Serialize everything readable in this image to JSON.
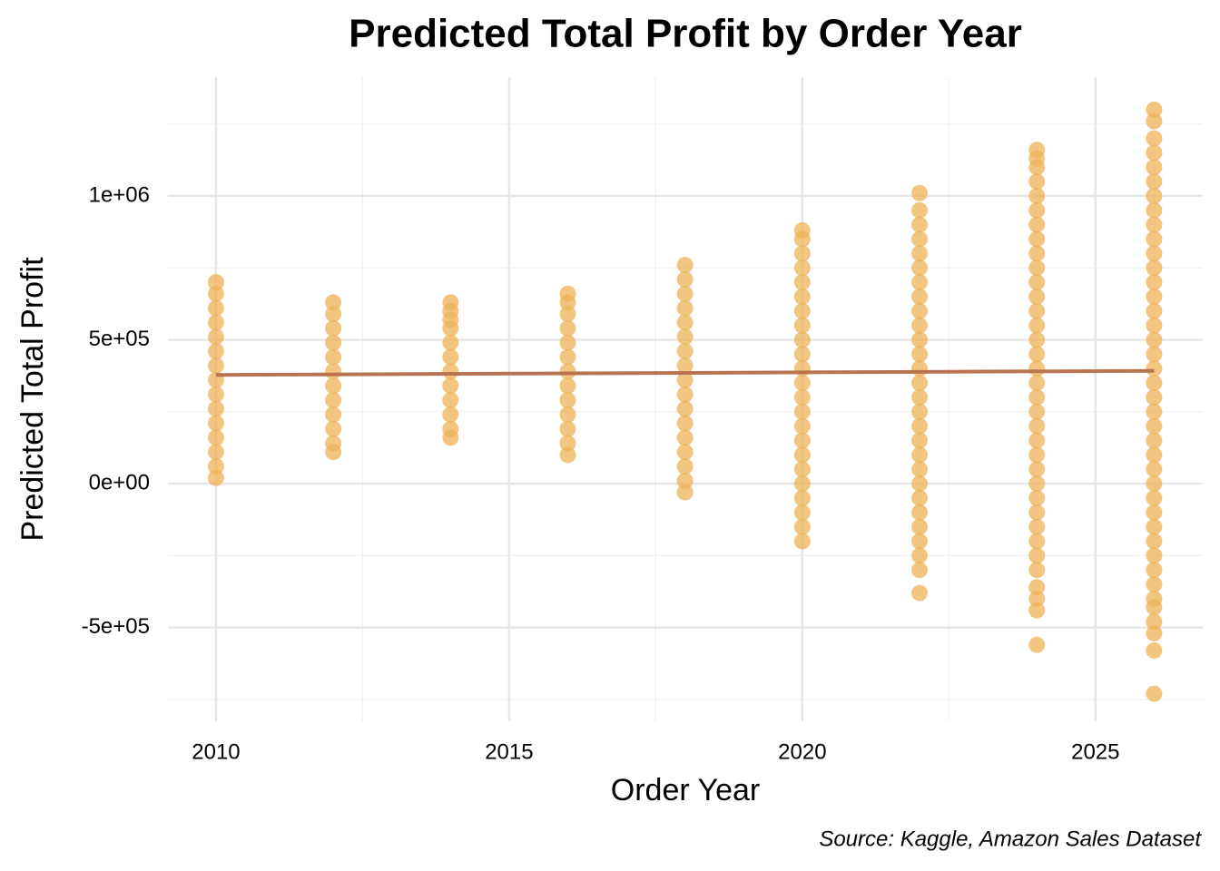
{
  "chart_data": {
    "type": "scatter",
    "title": "Predicted Total Profit by Order Year",
    "x_label": "Order Year",
    "y_label": "Predicted Total Profit",
    "caption": "Source: Kaggle, Amazon Sales Dataset",
    "color": "#eeb157",
    "xlim": [
      2009.18,
      2026.83
    ],
    "ylim": [
      -826000,
      1413000
    ],
    "xticks": [
      2010,
      2015,
      2020,
      2025
    ],
    "yticks": [
      {
        "value": -500000,
        "label": "-5e+05"
      },
      {
        "value": 0,
        "label": "0e+00"
      },
      {
        "value": 500000,
        "label": "5e+05"
      },
      {
        "value": 1000000,
        "label": "1e+06"
      }
    ],
    "xminorticks": [
      2012.5,
      2017.5,
      2022.5
    ],
    "yminorticks": [
      -750000,
      -250000,
      250000,
      750000,
      1250000
    ],
    "grid": true,
    "groups": [
      {
        "x": 2010,
        "values": [
          20000,
          60000,
          110000,
          160000,
          210000,
          260000,
          310000,
          360000,
          410000,
          460000,
          510000,
          560000,
          610000,
          660000,
          700000
        ]
      },
      {
        "x": 2012,
        "values": [
          110000,
          140000,
          190000,
          240000,
          290000,
          340000,
          390000,
          440000,
          490000,
          540000,
          590000,
          630000
        ]
      },
      {
        "x": 2014,
        "values": [
          160000,
          190000,
          240000,
          290000,
          340000,
          390000,
          440000,
          490000,
          540000,
          570000,
          600000,
          630000
        ]
      },
      {
        "x": 2016,
        "values": [
          100000,
          140000,
          190000,
          240000,
          290000,
          340000,
          390000,
          440000,
          490000,
          540000,
          590000,
          630000,
          660000
        ]
      },
      {
        "x": 2018,
        "values": [
          -30000,
          10000,
          60000,
          110000,
          160000,
          210000,
          260000,
          310000,
          360000,
          410000,
          460000,
          510000,
          560000,
          610000,
          660000,
          710000,
          760000
        ]
      },
      {
        "x": 2020,
        "values": [
          -200000,
          -150000,
          -100000,
          -50000,
          0,
          50000,
          100000,
          150000,
          200000,
          250000,
          300000,
          350000,
          400000,
          450000,
          500000,
          550000,
          600000,
          650000,
          700000,
          750000,
          800000,
          850000,
          880000
        ]
      },
      {
        "x": 2022,
        "values": [
          -380000,
          -300000,
          -250000,
          -200000,
          -150000,
          -100000,
          -50000,
          0,
          50000,
          100000,
          150000,
          200000,
          250000,
          300000,
          350000,
          400000,
          450000,
          500000,
          550000,
          600000,
          650000,
          700000,
          750000,
          800000,
          850000,
          900000,
          950000,
          1010000
        ]
      },
      {
        "x": 2024,
        "values": [
          -560000,
          -440000,
          -400000,
          -360000,
          -300000,
          -250000,
          -200000,
          -150000,
          -100000,
          -50000,
          0,
          50000,
          100000,
          150000,
          200000,
          250000,
          300000,
          350000,
          400000,
          450000,
          500000,
          550000,
          600000,
          650000,
          700000,
          750000,
          800000,
          850000,
          900000,
          950000,
          1000000,
          1050000,
          1100000,
          1130000,
          1160000
        ]
      },
      {
        "x": 2026,
        "values": [
          -730000,
          -580000,
          -520000,
          -480000,
          -430000,
          -400000,
          -350000,
          -300000,
          -250000,
          -200000,
          -150000,
          -100000,
          -50000,
          0,
          50000,
          100000,
          150000,
          200000,
          250000,
          300000,
          350000,
          400000,
          450000,
          500000,
          550000,
          600000,
          650000,
          700000,
          750000,
          800000,
          850000,
          900000,
          950000,
          1000000,
          1050000,
          1100000,
          1150000,
          1200000,
          1260000,
          1300000
        ]
      }
    ],
    "trend": {
      "color": "#b87350",
      "x": [
        2010,
        2026
      ],
      "y": [
        378000,
        392000
      ]
    }
  }
}
